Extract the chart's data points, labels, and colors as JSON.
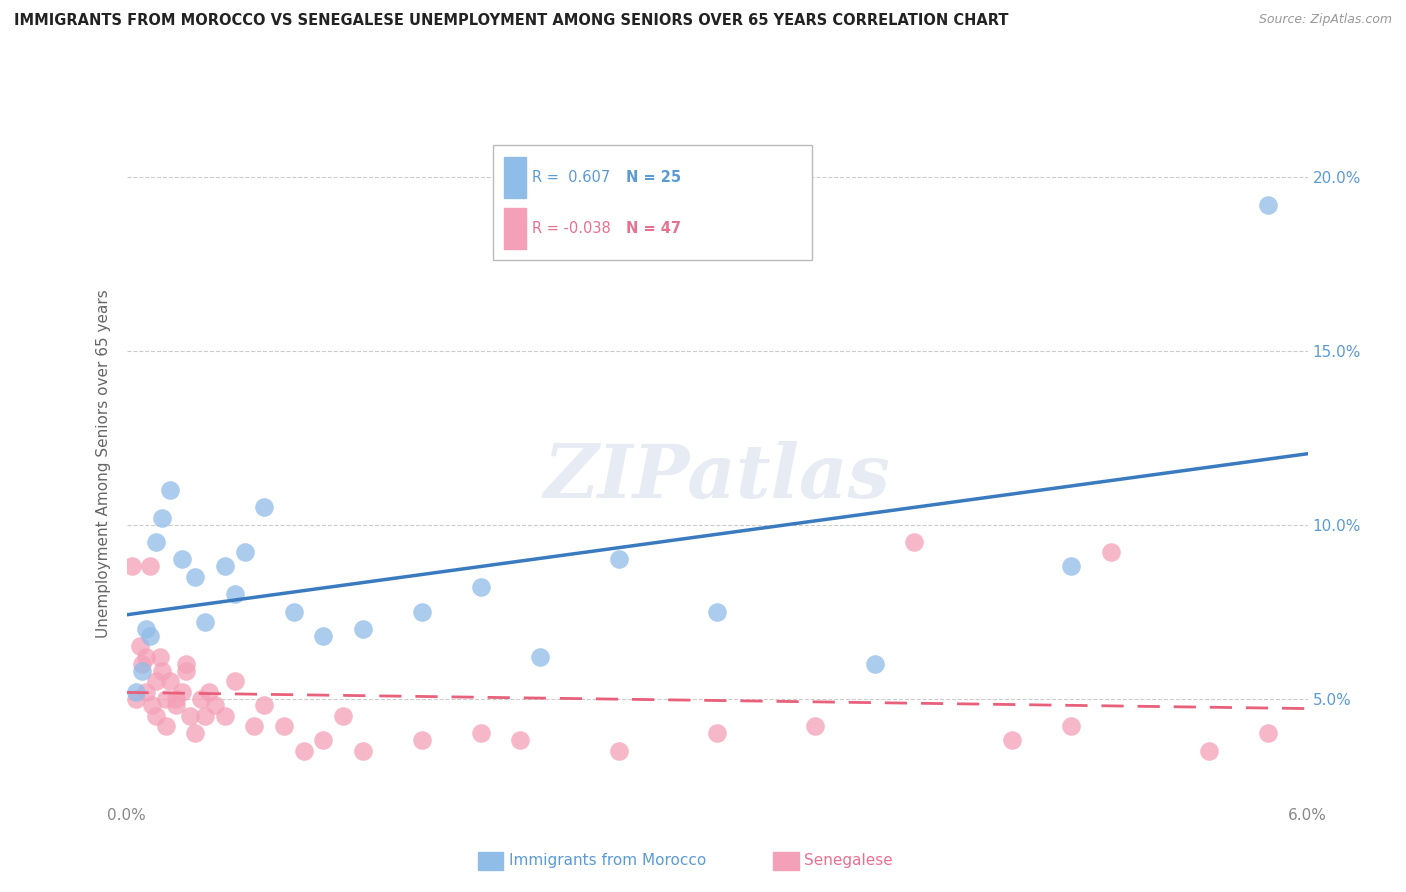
{
  "title": "IMMIGRANTS FROM MOROCCO VS SENEGALESE UNEMPLOYMENT AMONG SENIORS OVER 65 YEARS CORRELATION CHART",
  "source": "Source: ZipAtlas.com",
  "ylabel": "Unemployment Among Seniors over 65 years",
  "xlim": [
    0.0,
    6.0
  ],
  "ylim": [
    2.0,
    21.5
  ],
  "yticks": [
    5.0,
    10.0,
    15.0,
    20.0
  ],
  "ytick_labels": [
    "5.0%",
    "10.0%",
    "15.0%",
    "20.0%"
  ],
  "legend_R1": "R =  0.607",
  "legend_N1": "N = 25",
  "legend_R2": "R = -0.038",
  "legend_N2": "N = 47",
  "color_blue": "#90bce8",
  "color_pink": "#f4a0b8",
  "color_blue_line": "#3a7abf",
  "color_pink_line": "#e8607a",
  "color_blue_text": "#5b9bd5",
  "color_pink_text": "#e87090",
  "watermark": "ZIPatlas",
  "morocco_x": [
    0.05,
    0.08,
    0.1,
    0.12,
    0.15,
    0.18,
    0.22,
    0.28,
    0.35,
    0.4,
    0.5,
    0.55,
    0.6,
    0.7,
    0.85,
    1.0,
    1.2,
    1.5,
    1.8,
    2.1,
    2.5,
    3.0,
    3.8,
    4.8,
    5.8
  ],
  "morocco_y": [
    5.2,
    5.8,
    7.0,
    6.8,
    9.5,
    10.2,
    11.0,
    9.0,
    8.5,
    7.2,
    8.8,
    8.0,
    9.2,
    10.5,
    7.5,
    6.8,
    7.0,
    7.5,
    8.2,
    6.2,
    9.0,
    7.5,
    6.0,
    8.8,
    19.2
  ],
  "senegalese_x": [
    0.03,
    0.05,
    0.07,
    0.08,
    0.1,
    0.1,
    0.12,
    0.13,
    0.15,
    0.15,
    0.17,
    0.18,
    0.2,
    0.2,
    0.22,
    0.25,
    0.25,
    0.28,
    0.3,
    0.3,
    0.32,
    0.35,
    0.38,
    0.4,
    0.42,
    0.45,
    0.5,
    0.55,
    0.65,
    0.7,
    0.8,
    0.9,
    1.0,
    1.1,
    1.2,
    1.5,
    1.8,
    2.0,
    2.5,
    3.0,
    3.5,
    4.0,
    4.5,
    4.8,
    5.0,
    5.5,
    5.8
  ],
  "senegalese_y": [
    8.8,
    5.0,
    6.5,
    6.0,
    5.2,
    6.2,
    8.8,
    4.8,
    5.5,
    4.5,
    6.2,
    5.8,
    5.0,
    4.2,
    5.5,
    5.0,
    4.8,
    5.2,
    6.0,
    5.8,
    4.5,
    4.0,
    5.0,
    4.5,
    5.2,
    4.8,
    4.5,
    5.5,
    4.2,
    4.8,
    4.2,
    3.5,
    3.8,
    4.5,
    3.5,
    3.8,
    4.0,
    3.8,
    3.5,
    4.0,
    4.2,
    9.5,
    3.8,
    4.2,
    9.2,
    3.5,
    4.0
  ]
}
